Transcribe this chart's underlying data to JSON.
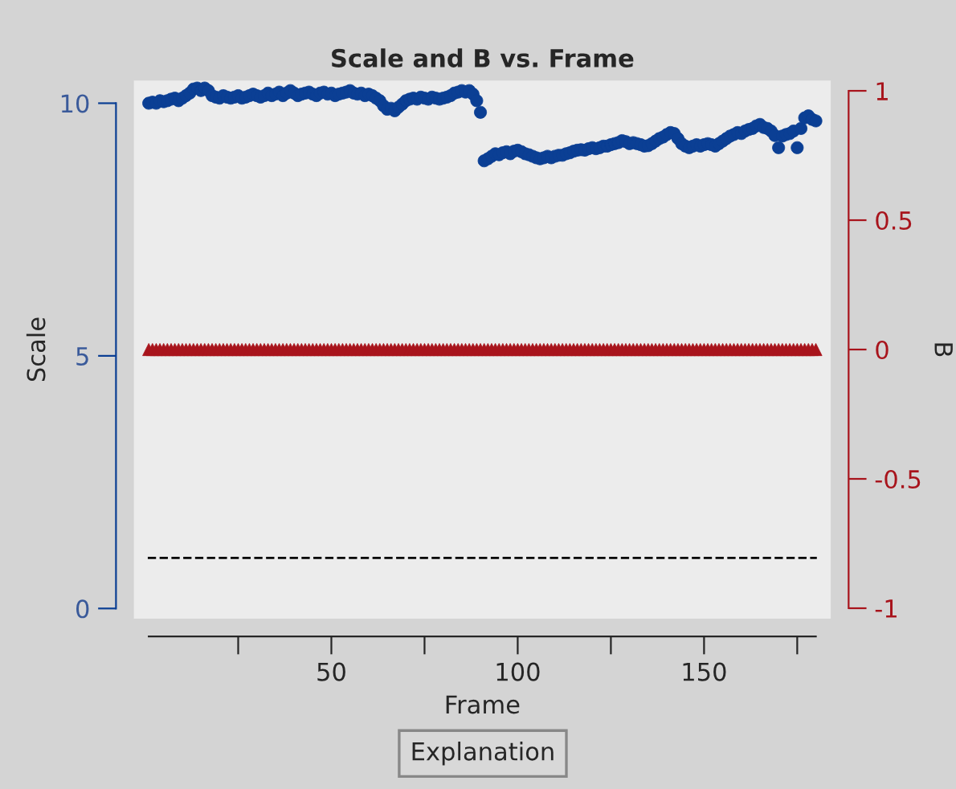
{
  "chart_data": {
    "type": "scatter",
    "title": "Scale and B vs. Frame",
    "xlabel": "Frame",
    "ylabel": "Scale",
    "y2label": "B",
    "x": [
      1,
      2,
      3,
      4,
      5,
      6,
      7,
      8,
      9,
      10,
      11,
      12,
      13,
      14,
      15,
      16,
      17,
      18,
      19,
      20,
      21,
      22,
      23,
      24,
      25,
      26,
      27,
      28,
      29,
      30,
      31,
      32,
      33,
      34,
      35,
      36,
      37,
      38,
      39,
      40,
      41,
      42,
      43,
      44,
      45,
      46,
      47,
      48,
      49,
      50,
      51,
      52,
      53,
      54,
      55,
      56,
      57,
      58,
      59,
      60,
      61,
      62,
      63,
      64,
      65,
      66,
      67,
      68,
      69,
      70,
      71,
      72,
      73,
      74,
      75,
      76,
      77,
      78,
      79,
      80,
      81,
      82,
      83,
      84,
      85,
      86,
      87,
      88,
      89,
      90,
      91,
      92,
      93,
      94,
      95,
      96,
      97,
      98,
      99,
      100,
      101,
      102,
      103,
      104,
      105,
      106,
      107,
      108,
      109,
      110,
      111,
      112,
      113,
      114,
      115,
      116,
      117,
      118,
      119,
      120,
      121,
      122,
      123,
      124,
      125,
      126,
      127,
      128,
      129,
      130,
      131,
      132,
      133,
      134,
      135,
      136,
      137,
      138,
      139,
      140,
      141,
      142,
      143,
      144,
      145,
      146,
      147,
      148,
      149,
      150,
      151,
      152,
      153,
      154,
      155,
      156,
      157,
      158,
      159,
      160,
      161,
      162,
      163,
      164,
      165,
      166,
      167,
      168,
      169,
      170,
      171,
      172,
      173,
      174,
      175,
      176,
      177,
      178,
      179,
      180
    ],
    "series": [
      {
        "color": "#0b3f94",
        "marker": "circle",
        "values": [
          10.0,
          10.02,
          10.0,
          10.05,
          10.03,
          10.05,
          10.08,
          10.1,
          10.05,
          10.1,
          10.15,
          10.2,
          10.28,
          10.3,
          10.25,
          10.3,
          10.25,
          10.15,
          10.12,
          10.1,
          10.15,
          10.12,
          10.1,
          10.12,
          10.15,
          10.1,
          10.12,
          10.15,
          10.18,
          10.15,
          10.12,
          10.15,
          10.2,
          10.15,
          10.18,
          10.22,
          10.15,
          10.2,
          10.25,
          10.2,
          10.15,
          10.18,
          10.2,
          10.22,
          10.18,
          10.15,
          10.2,
          10.22,
          10.18,
          10.2,
          10.15,
          10.18,
          10.2,
          10.22,
          10.25,
          10.2,
          10.18,
          10.2,
          10.15,
          10.18,
          10.15,
          10.1,
          10.05,
          9.95,
          9.88,
          9.9,
          9.85,
          9.92,
          9.98,
          10.05,
          10.08,
          10.1,
          10.08,
          10.12,
          10.1,
          10.08,
          10.12,
          10.1,
          10.08,
          10.1,
          10.12,
          10.15,
          10.2,
          10.22,
          10.25,
          10.22,
          10.25,
          10.18,
          10.05,
          9.82,
          8.86,
          8.9,
          8.95,
          9.0,
          8.98,
          9.02,
          9.04,
          9.0,
          9.05,
          9.07,
          9.04,
          9.0,
          8.98,
          8.95,
          8.92,
          8.9,
          8.92,
          8.95,
          8.92,
          8.95,
          8.97,
          8.97,
          9.0,
          9.02,
          9.05,
          9.07,
          9.08,
          9.07,
          9.1,
          9.12,
          9.1,
          9.12,
          9.15,
          9.15,
          9.18,
          9.2,
          9.22,
          9.26,
          9.24,
          9.2,
          9.22,
          9.2,
          9.18,
          9.15,
          9.16,
          9.2,
          9.25,
          9.3,
          9.33,
          9.38,
          9.42,
          9.4,
          9.3,
          9.2,
          9.15,
          9.12,
          9.15,
          9.18,
          9.15,
          9.18,
          9.2,
          9.18,
          9.15,
          9.2,
          9.25,
          9.3,
          9.35,
          9.38,
          9.42,
          9.4,
          9.45,
          9.48,
          9.5,
          9.55,
          9.58,
          9.52,
          9.5,
          9.45,
          9.36,
          9.12,
          9.35,
          9.38,
          9.4,
          9.45,
          9.12,
          9.5,
          9.71,
          9.75,
          9.68,
          9.65
        ]
      },
      {
        "color": "#a8141c",
        "marker": "triangle",
        "axis": "y2",
        "values": [
          0,
          0,
          0,
          0,
          0,
          0,
          0,
          0,
          0,
          0,
          0,
          0,
          0,
          0,
          0,
          0,
          0,
          0,
          0,
          0,
          0,
          0,
          0,
          0,
          0,
          0,
          0,
          0,
          0,
          0,
          0,
          0,
          0,
          0,
          0,
          0,
          0,
          0,
          0,
          0,
          0,
          0,
          0,
          0,
          0,
          0,
          0,
          0,
          0,
          0,
          0,
          0,
          0,
          0,
          0,
          0,
          0,
          0,
          0,
          0,
          0,
          0,
          0,
          0,
          0,
          0,
          0,
          0,
          0,
          0,
          0,
          0,
          0,
          0,
          0,
          0,
          0,
          0,
          0,
          0,
          0,
          0,
          0,
          0,
          0,
          0,
          0,
          0,
          0,
          0,
          0,
          0,
          0,
          0,
          0,
          0,
          0,
          0,
          0,
          0,
          0,
          0,
          0,
          0,
          0,
          0,
          0,
          0,
          0,
          0,
          0,
          0,
          0,
          0,
          0,
          0,
          0,
          0,
          0,
          0,
          0,
          0,
          0,
          0,
          0,
          0,
          0,
          0,
          0,
          0,
          0,
          0,
          0,
          0,
          0,
          0,
          0,
          0,
          0,
          0,
          0,
          0,
          0,
          0,
          0,
          0,
          0,
          0,
          0,
          0,
          0,
          0,
          0,
          0,
          0,
          0,
          0,
          0,
          0,
          0,
          0,
          0,
          0,
          0,
          0,
          0,
          0,
          0,
          0,
          0,
          0,
          0,
          0,
          0,
          0,
          0,
          0,
          0,
          0,
          0
        ]
      }
    ],
    "xlim": [
      -3,
      184
    ],
    "xticks": [
      {
        "value": 25,
        "label": null
      },
      50,
      {
        "value": 75,
        "label": null
      },
      100,
      {
        "value": 125,
        "label": null
      },
      150,
      {
        "value": 175,
        "label": null
      }
    ],
    "ylim": [
      -0.2,
      10.45
    ],
    "yticks": [
      0,
      5,
      10
    ],
    "y2lim": [
      -1.04,
      1.04
    ],
    "y2ticks": [
      -1,
      -0.5,
      0,
      0.5,
      1
    ],
    "ref_lines": [
      {
        "axis": "y",
        "value": 1,
        "color": "#000000",
        "line_style": "dashed"
      }
    ],
    "annotations": [
      "Explanation"
    ],
    "grid": false,
    "legend": false
  }
}
